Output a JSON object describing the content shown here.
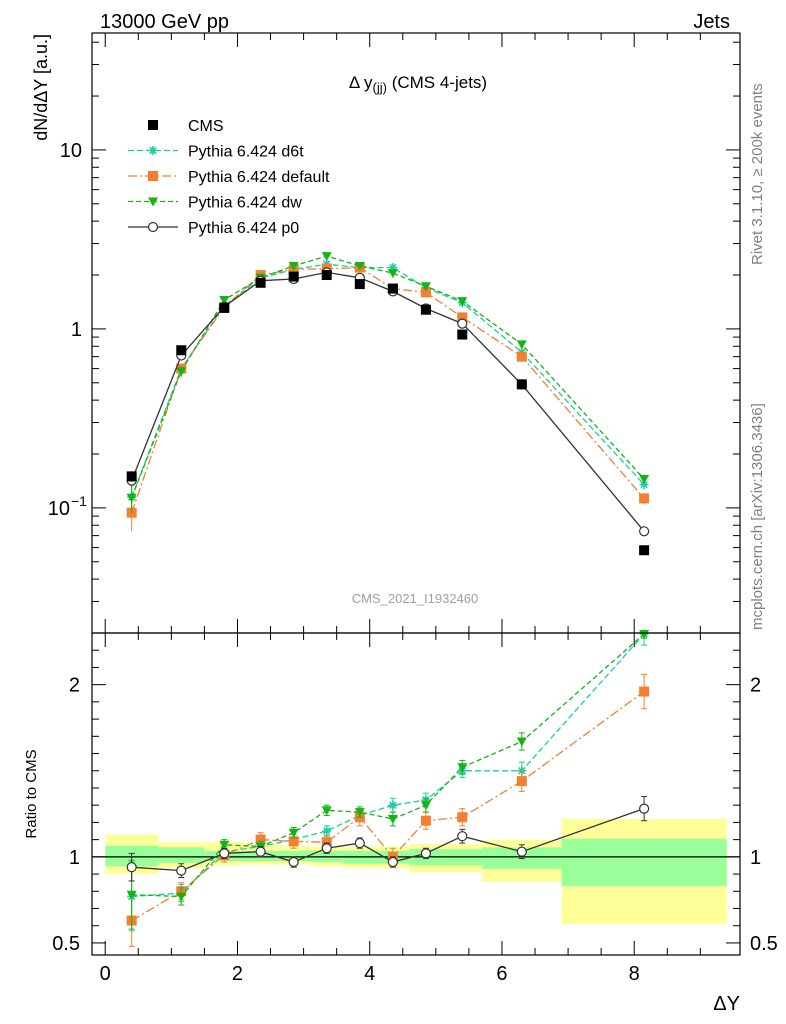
{
  "header": {
    "energy_label": "13000 GeV pp",
    "process_label": "Jets",
    "rivet_label": "Rivet 3.1.10, ≥ 200k events",
    "source_label": "mcplots.cern.ch [arXiv:1306.3436]",
    "analysis_id": "CMS_2021_I1932460"
  },
  "colors": {
    "cms": "#000000",
    "d6t": "#19cfa0",
    "default": "#f47f30",
    "dw": "#14b414",
    "p0": "#333333",
    "band_inner": "#99ff99",
    "band_outer": "#ffff99"
  },
  "chart_data": [
    {
      "type": "line",
      "title": "Δ y(jj) (CMS 4-jets)",
      "title_main": "Δ y",
      "title_sub": "(jj)",
      "title_rest": " (CMS 4-jets)",
      "ylabel": "dN/dΔY [a.u.]",
      "xlabel": "ΔY",
      "yscale": "log",
      "xlim": [
        -0.2,
        9.6
      ],
      "ylim": [
        0.02,
        45
      ],
      "yticks": [
        {
          "value": 0.1,
          "label": "10",
          "exp": "−1"
        },
        {
          "value": 1,
          "label": "1",
          "exp": ""
        },
        {
          "value": 10,
          "label": "10",
          "exp": ""
        }
      ],
      "legend_position": "top-left",
      "series": [
        {
          "name": "CMS",
          "key": "cms",
          "marker": "square",
          "dash": "none",
          "x": [
            0.4,
            1.15,
            1.8,
            2.35,
            2.85,
            3.35,
            3.85,
            4.35,
            4.85,
            5.4,
            6.3,
            8.15
          ],
          "y": [
            0.15,
            0.76,
            1.31,
            1.81,
            1.96,
            2.0,
            1.78,
            1.68,
            1.28,
            0.93,
            0.49,
            0.058
          ],
          "err": [
            0.01,
            0.03,
            0.04,
            0.05,
            0.05,
            0.05,
            0.05,
            0.05,
            0.04,
            0.03,
            0.02,
            0.003
          ]
        },
        {
          "name": "Pythia 6.424 d6t",
          "key": "d6t",
          "marker": "star",
          "dash": "6,3",
          "x": [
            0.4,
            1.15,
            1.8,
            2.35,
            2.85,
            3.35,
            3.85,
            4.35,
            4.85,
            5.4,
            6.3,
            8.15
          ],
          "y": [
            0.115,
            0.6,
            1.35,
            1.92,
            2.15,
            2.3,
            2.2,
            2.2,
            1.7,
            1.4,
            0.74,
            0.135
          ],
          "err": [
            0.02,
            0.04,
            0.05,
            0.06,
            0.06,
            0.06,
            0.06,
            0.06,
            0.05,
            0.04,
            0.03,
            0.008
          ]
        },
        {
          "name": "Pythia 6.424 default",
          "key": "default",
          "marker": "square",
          "dash": "9,3,2,3",
          "x": [
            0.4,
            1.15,
            1.8,
            2.35,
            2.85,
            3.35,
            3.85,
            4.35,
            4.85,
            5.4,
            6.3,
            8.15
          ],
          "y": [
            0.094,
            0.6,
            1.32,
            2.0,
            2.15,
            2.17,
            2.2,
            1.68,
            1.6,
            1.16,
            0.7,
            0.113
          ],
          "err": [
            0.02,
            0.04,
            0.05,
            0.06,
            0.06,
            0.06,
            0.06,
            0.06,
            0.05,
            0.04,
            0.03,
            0.008
          ]
        },
        {
          "name": "Pythia 6.424 dw",
          "key": "dw",
          "marker": "triangle-down",
          "dash": "5,3",
          "x": [
            0.4,
            1.15,
            1.8,
            2.35,
            2.85,
            3.35,
            3.85,
            4.35,
            4.85,
            5.4,
            6.3,
            8.15
          ],
          "y": [
            0.114,
            0.58,
            1.45,
            1.93,
            2.25,
            2.55,
            2.25,
            2.05,
            1.73,
            1.43,
            0.82,
            0.145
          ],
          "err": [
            0.02,
            0.04,
            0.05,
            0.06,
            0.06,
            0.06,
            0.06,
            0.06,
            0.05,
            0.04,
            0.03,
            0.008
          ]
        },
        {
          "name": "Pythia 6.424 p0",
          "key": "p0",
          "marker": "circle-open",
          "dash": "none",
          "x": [
            0.4,
            1.15,
            1.8,
            2.35,
            2.85,
            3.35,
            3.85,
            4.35,
            4.85,
            5.4,
            6.3,
            8.15
          ],
          "y": [
            0.142,
            0.71,
            1.33,
            1.86,
            1.9,
            2.07,
            1.93,
            1.62,
            1.3,
            1.07,
            0.49,
            0.074
          ],
          "err": [
            0.01,
            0.03,
            0.04,
            0.05,
            0.05,
            0.05,
            0.05,
            0.05,
            0.04,
            0.03,
            0.02,
            0.004
          ]
        }
      ]
    },
    {
      "type": "line",
      "ylabel": "Ratio to CMS",
      "xlabel": "ΔY",
      "xlim": [
        -0.2,
        9.6
      ],
      "ylim": [
        0.43,
        2.3
      ],
      "reference_line": 1,
      "xticks": [
        0,
        2,
        4,
        6,
        8
      ],
      "yticks": [
        {
          "value": 0.5,
          "label": "0.5"
        },
        {
          "value": 1,
          "label": "1"
        },
        {
          "value": 2,
          "label": "2"
        }
      ],
      "bands": [
        {
          "x0": 0.0,
          "x1": 0.8,
          "inner": [
            0.945,
            1.065
          ],
          "outer": [
            0.9,
            1.13
          ]
        },
        {
          "x0": 0.8,
          "x1": 1.5,
          "inner": [
            0.965,
            1.055
          ],
          "outer": [
            0.935,
            1.085
          ]
        },
        {
          "x0": 1.5,
          "x1": 2.1,
          "inner": [
            0.975,
            1.035
          ],
          "outer": [
            0.95,
            1.085
          ]
        },
        {
          "x0": 2.1,
          "x1": 2.6,
          "inner": [
            0.975,
            1.035
          ],
          "outer": [
            0.955,
            1.075
          ]
        },
        {
          "x0": 2.6,
          "x1": 3.1,
          "inner": [
            0.975,
            1.035
          ],
          "outer": [
            0.955,
            1.065
          ]
        },
        {
          "x0": 3.1,
          "x1": 3.6,
          "inner": [
            0.97,
            1.035
          ],
          "outer": [
            0.945,
            1.06
          ]
        },
        {
          "x0": 3.6,
          "x1": 4.1,
          "inner": [
            0.96,
            1.035
          ],
          "outer": [
            0.935,
            1.06
          ]
        },
        {
          "x0": 4.1,
          "x1": 4.6,
          "inner": [
            0.96,
            1.035
          ],
          "outer": [
            0.935,
            1.06
          ]
        },
        {
          "x0": 4.6,
          "x1": 5.7,
          "inner": [
            0.95,
            1.045
          ],
          "outer": [
            0.91,
            1.075
          ]
        },
        {
          "x0": 5.7,
          "x1": 6.9,
          "inner": [
            0.93,
            1.055
          ],
          "outer": [
            0.855,
            1.1
          ]
        },
        {
          "x0": 6.9,
          "x1": 9.4,
          "inner": [
            0.83,
            1.105
          ],
          "outer": [
            0.61,
            1.22
          ]
        }
      ],
      "series": [
        {
          "name": "Pythia 6.424 d6t",
          "key": "d6t",
          "marker": "star",
          "dash": "6,3",
          "x": [
            0.4,
            1.15,
            1.8,
            2.35,
            2.85,
            3.35,
            3.85,
            4.35,
            4.85,
            5.4,
            6.3,
            8.15
          ],
          "y": [
            0.77,
            0.79,
            1.03,
            1.06,
            1.1,
            1.15,
            1.24,
            1.3,
            1.33,
            1.5,
            1.5,
            2.31
          ],
          "err": [
            0.2,
            0.05,
            0.03,
            0.03,
            0.03,
            0.03,
            0.03,
            0.04,
            0.04,
            0.04,
            0.05,
            0.08
          ]
        },
        {
          "name": "Pythia 6.424 default",
          "key": "default",
          "marker": "square",
          "dash": "9,3,2,3",
          "x": [
            0.4,
            1.15,
            1.8,
            2.35,
            2.85,
            3.35,
            3.85,
            4.35,
            4.85,
            5.4,
            6.3,
            8.15
          ],
          "y": [
            0.63,
            0.8,
            1.01,
            1.1,
            1.09,
            1.085,
            1.23,
            1.0,
            1.21,
            1.23,
            1.44,
            1.96
          ],
          "err": [
            0.15,
            0.05,
            0.04,
            0.04,
            0.04,
            0.04,
            0.05,
            0.05,
            0.05,
            0.05,
            0.06,
            0.1
          ]
        },
        {
          "name": "Pythia 6.424 dw",
          "key": "dw",
          "marker": "triangle-down",
          "dash": "5,3",
          "x": [
            0.4,
            1.15,
            1.8,
            2.35,
            2.85,
            3.35,
            3.85,
            4.35,
            4.85,
            5.4,
            6.3,
            8.15
          ],
          "y": [
            0.78,
            0.77,
            1.07,
            1.06,
            1.14,
            1.27,
            1.26,
            1.22,
            1.3,
            1.52,
            1.67,
            2.35
          ],
          "err": [
            0.2,
            0.05,
            0.03,
            0.03,
            0.03,
            0.03,
            0.03,
            0.04,
            0.04,
            0.04,
            0.05,
            0.08
          ]
        },
        {
          "name": "Pythia 6.424 p0",
          "key": "p0",
          "marker": "circle-open",
          "dash": "none",
          "x": [
            0.4,
            1.15,
            1.8,
            2.35,
            2.85,
            3.35,
            3.85,
            4.35,
            4.85,
            5.4,
            6.3,
            8.15
          ],
          "y": [
            0.94,
            0.92,
            1.02,
            1.03,
            0.97,
            1.05,
            1.08,
            0.97,
            1.02,
            1.12,
            1.03,
            1.28
          ],
          "err": [
            0.08,
            0.04,
            0.03,
            0.03,
            0.03,
            0.03,
            0.03,
            0.03,
            0.03,
            0.04,
            0.04,
            0.07
          ]
        }
      ]
    }
  ]
}
